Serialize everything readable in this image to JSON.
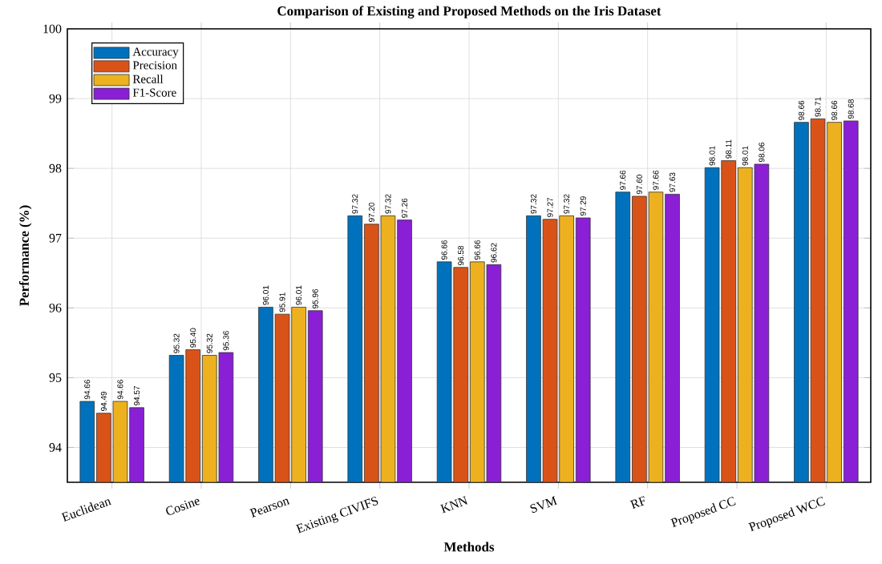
{
  "chart_data": {
    "type": "bar",
    "title": "Comparison of Existing and Proposed Methods on the Iris Dataset",
    "xlabel": "Methods",
    "ylabel": "Performance (%)",
    "categories": [
      "Euclidean",
      "Cosine",
      "Pearson",
      "Existing CIVIFS",
      "KNN",
      "SVM",
      "RF",
      "Proposed CC",
      "Proposed WCC"
    ],
    "series": [
      {
        "name": "Accuracy",
        "color": "#0072bd",
        "values": [
          94.66,
          95.32,
          96.01,
          97.32,
          96.66,
          97.32,
          97.66,
          98.01,
          98.66
        ],
        "value_labels": [
          "94.66",
          "95.32",
          "96.01",
          "97.32",
          "96.66",
          "97.32",
          "97.66",
          "98.01",
          "98.66"
        ]
      },
      {
        "name": "Precision",
        "color": "#d95319",
        "values": [
          94.49,
          95.4,
          95.91,
          97.2,
          96.58,
          97.27,
          97.6,
          98.11,
          98.71
        ],
        "value_labels": [
          "94.49",
          "95.40",
          "95.91",
          "97.20",
          "96.58",
          "97.27",
          "97.60",
          "98.11",
          "98.71"
        ]
      },
      {
        "name": "Recall",
        "color": "#edb120",
        "values": [
          94.66,
          95.32,
          96.01,
          97.32,
          96.66,
          97.32,
          97.66,
          98.01,
          98.66
        ],
        "value_labels": [
          "94.66",
          "95.32",
          "96.01",
          "97.32",
          "96.66",
          "97.32",
          "97.66",
          "98.01",
          "98.66"
        ]
      },
      {
        "name": "F1-Score",
        "color": "#8a1fd6",
        "values": [
          94.57,
          95.36,
          95.96,
          97.26,
          96.62,
          97.29,
          97.63,
          98.06,
          98.68
        ],
        "value_labels": [
          "94.57",
          "95.36",
          "95.96",
          "97.26",
          "96.62",
          "97.29",
          "97.63",
          "98.06",
          "98.68"
        ]
      }
    ],
    "ylim": [
      93.5,
      100
    ],
    "yticks": [
      94,
      95,
      96,
      97,
      98,
      99,
      100
    ],
    "grid": true,
    "legend": "top left"
  }
}
